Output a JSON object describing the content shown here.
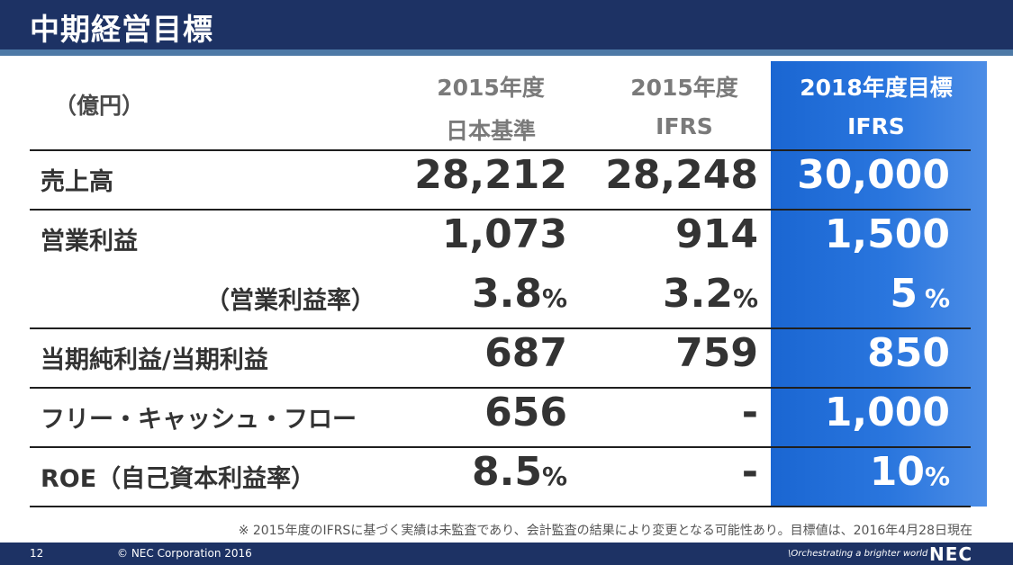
{
  "title": "中期経営目標",
  "unit_label": "（億円）",
  "columns": [
    {
      "line1": "2015年度",
      "line2": "日本基準"
    },
    {
      "line1": "2015年度",
      "line2": "IFRS"
    },
    {
      "line1": "2018年度目標",
      "line2": "IFRS"
    }
  ],
  "rows": [
    {
      "label": "売上高",
      "v1": "28,212",
      "v2": "28,248",
      "v3": "30,000"
    },
    {
      "label": "営業利益",
      "v1": "1,073",
      "v2": "914",
      "v3": "1,500"
    },
    {
      "label": "（営業利益率）",
      "v1": "3.8",
      "v2": "3.2",
      "v3": "5",
      "unit": "%"
    },
    {
      "label": "当期純利益/当期利益",
      "v1": "687",
      "v2": "759",
      "v3": "850"
    },
    {
      "label": "フリー・キャッシュ・フロー",
      "v1": "656",
      "v2": "-",
      "v3": "1,000"
    },
    {
      "label": "ROE（自己資本利益率）",
      "v1": "8.5",
      "v2": "-",
      "v3": "10",
      "unit": "%"
    }
  ],
  "note": "※ 2015年度のIFRSに基づく実績は未監査であり、会計監査の結果により変更となる可能性あり。目標値は、2016年4月28日現在",
  "footer": {
    "page_number": "12",
    "copyright": "© NEC Corporation 2016",
    "tagline": "\\Orchestrating a brighter world",
    "logo": "NEC"
  },
  "colors": {
    "navy": "#1d3264",
    "highlight": "#1a66d2"
  }
}
